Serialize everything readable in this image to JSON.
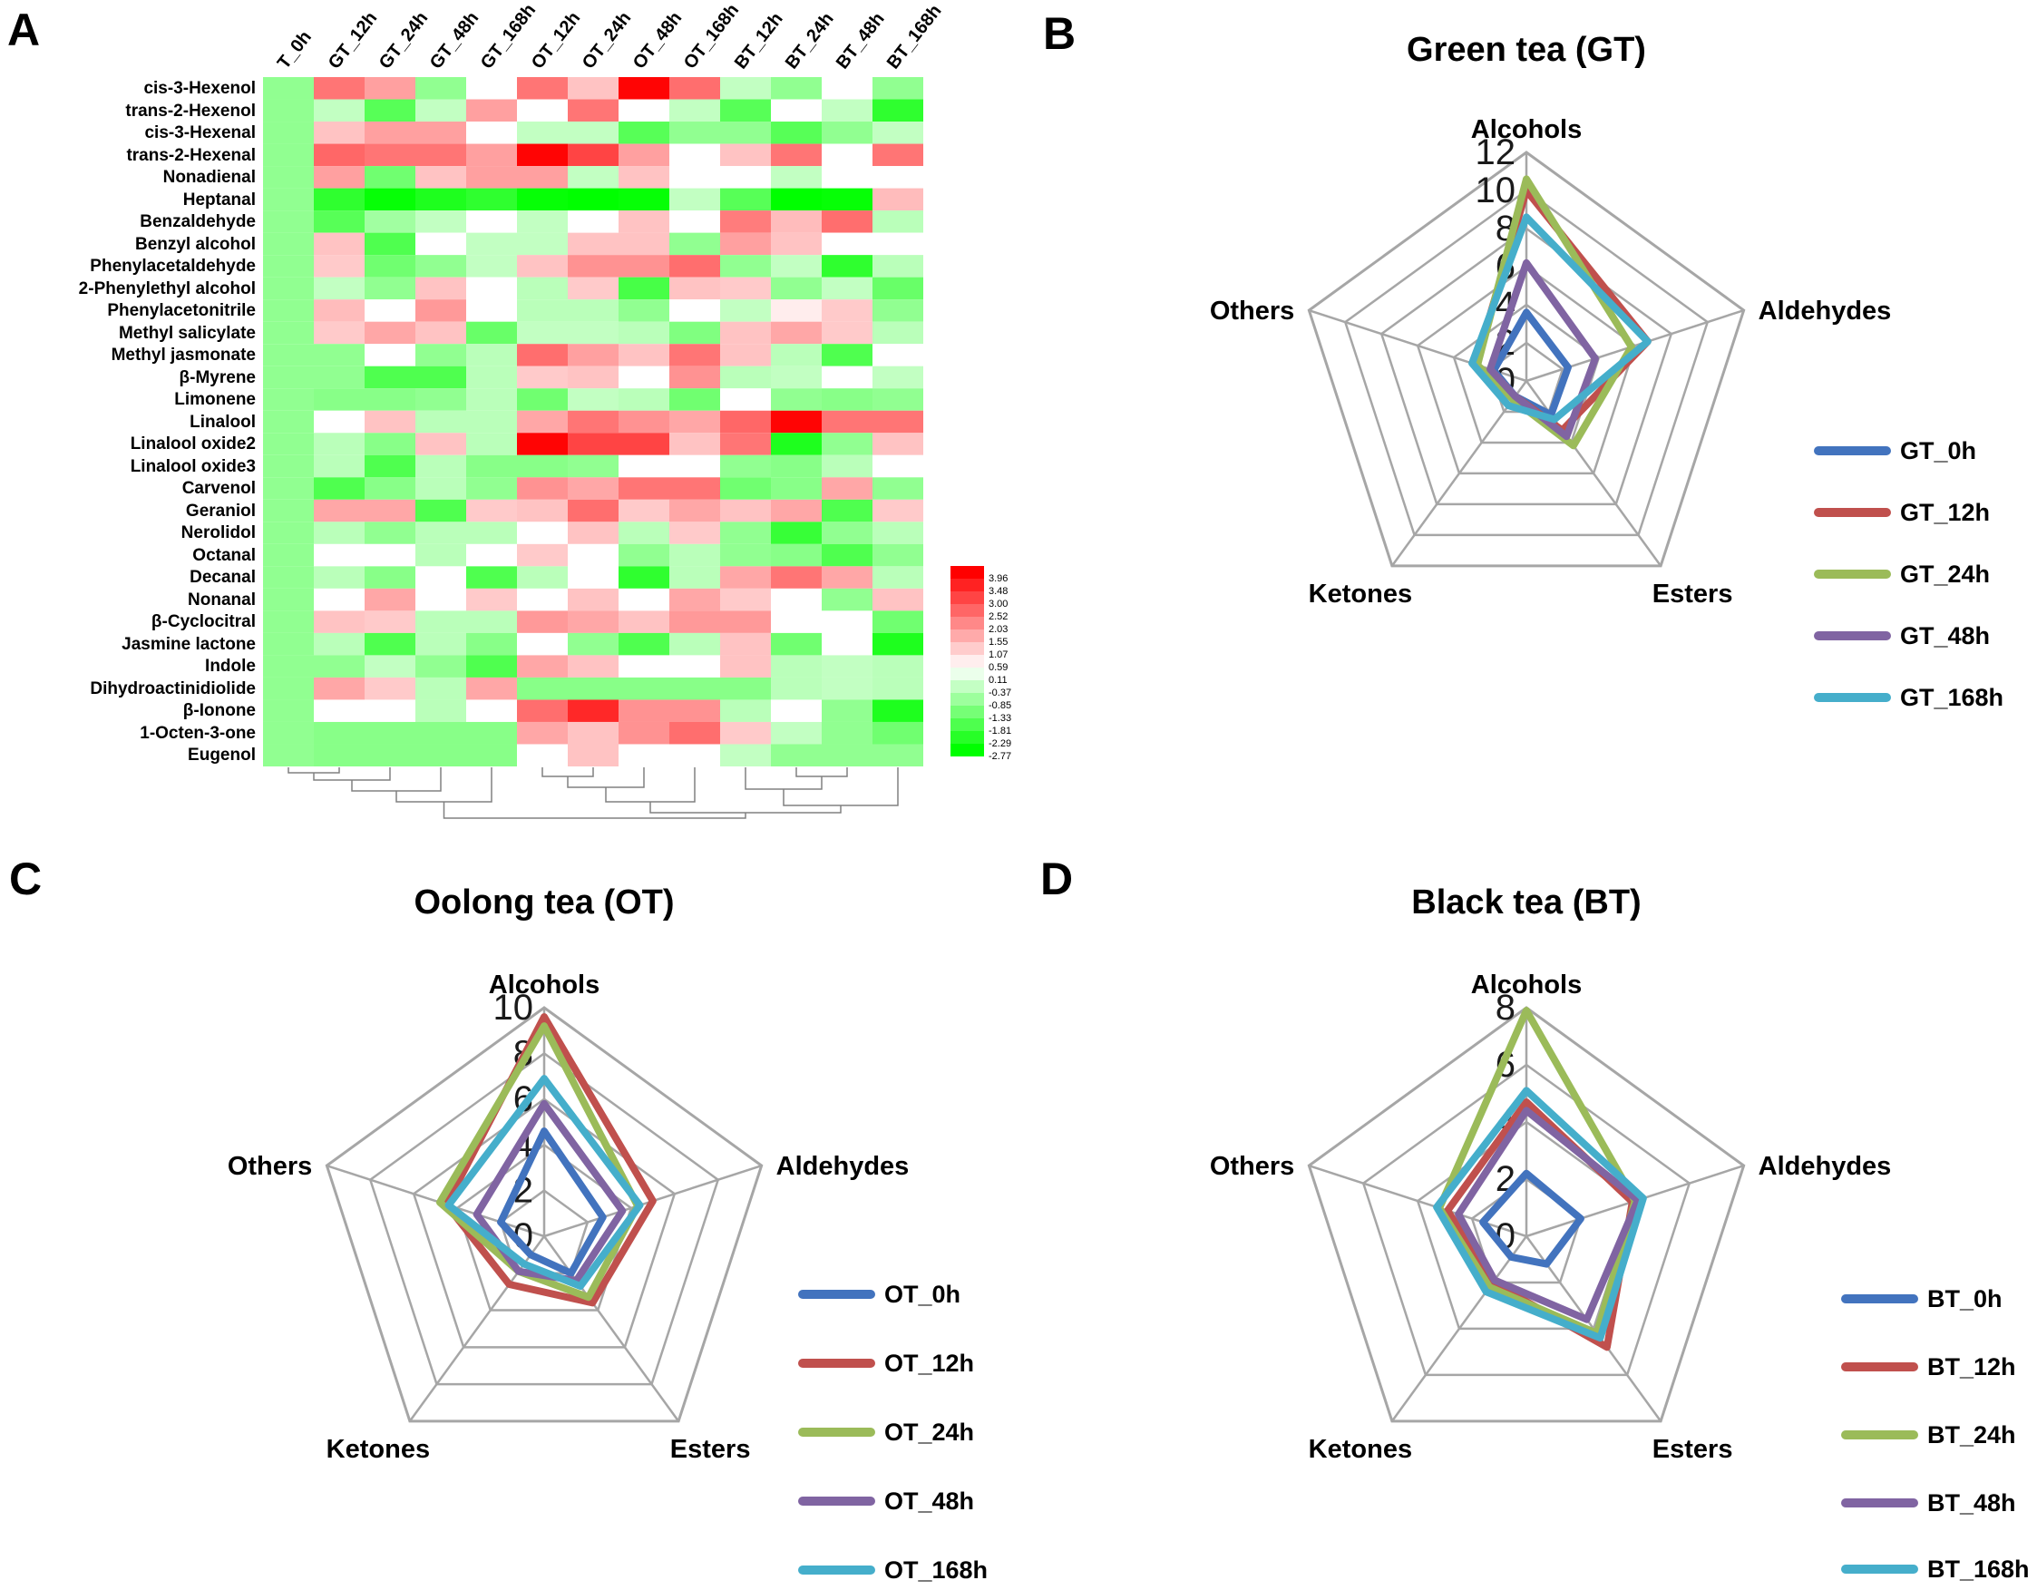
{
  "chart_data": [
    {
      "id": "A",
      "type": "heatmap",
      "label": "A",
      "columns": [
        "T_0h",
        "GT_12h",
        "GT_24h",
        "GT_48h",
        "GT_168h",
        "OT_12h",
        "OT_24h",
        "OT_48h",
        "OT_168h",
        "BT_12h",
        "BT_24h",
        "BT_48h",
        "BT_168h"
      ],
      "rows": [
        "cis-3-Hexenol",
        "trans-2-Hexenol",
        "cis-3-Hexenal",
        "trans-2-Hexenal",
        "Nonadienal",
        "Heptanal",
        "Benzaldehyde",
        "Benzyl alcohol",
        "Phenylacetaldehyde",
        "2-Phenylethyl alcohol",
        "Phenylacetonitrile",
        "Methyl salicylate",
        "Methyl jasmonate",
        "β-Myrene",
        "Limonene",
        "Linalool",
        "Linalool oxide2",
        "Linalool oxide3",
        "Carvenol",
        "Geraniol",
        "Nerolidol",
        "Octanal",
        "Decanal",
        "Nonanal",
        "β-Cyclocitral",
        "Jasmine lactone",
        "Indole",
        "Dihydroactinidiolide",
        "β-Ionone",
        "1-Octen-3-one",
        "Eugenol"
      ],
      "values": [
        [
          -1.0,
          2.3,
          1.7,
          -1.0,
          0.35,
          2.3,
          1.2,
          3.9,
          2.4,
          -0.4,
          -1.0,
          0.35,
          -1.0
        ],
        [
          -1.0,
          -0.4,
          -1.7,
          -0.4,
          1.7,
          0.35,
          2.3,
          0.35,
          -0.4,
          -1.7,
          0.35,
          -0.4,
          -2.2
        ],
        [
          -1.0,
          1.2,
          1.7,
          1.7,
          0.35,
          -0.4,
          -0.4,
          -1.7,
          -1.0,
          -1.0,
          -1.7,
          -1.0,
          -0.4
        ],
        [
          -1.0,
          2.5,
          2.3,
          2.3,
          1.7,
          3.9,
          3.0,
          1.7,
          0.35,
          1.2,
          2.3,
          0.35,
          2.3
        ],
        [
          -1.0,
          1.7,
          -1.4,
          1.2,
          1.7,
          1.7,
          -0.4,
          1.2,
          0.35,
          0.35,
          -0.4,
          0.35,
          0.35
        ],
        [
          -1.0,
          -2.2,
          -2.7,
          -2.4,
          -2.2,
          -2.7,
          -2.8,
          -2.7,
          -0.4,
          -1.7,
          -2.8,
          -2.7,
          1.3
        ],
        [
          -1.0,
          -1.7,
          -0.8,
          -0.4,
          0.35,
          -0.4,
          0.35,
          1.2,
          0.35,
          2.2,
          1.3,
          2.4,
          -0.5
        ],
        [
          -1.0,
          1.2,
          -1.8,
          0.35,
          -0.4,
          -0.4,
          1.2,
          1.2,
          -1.0,
          1.7,
          1.2,
          0.35,
          0.35
        ],
        [
          -1.0,
          1.1,
          -1.4,
          -1.0,
          -0.4,
          1.2,
          1.9,
          1.9,
          2.4,
          -1.0,
          -0.4,
          -2.2,
          -0.5
        ],
        [
          -1.0,
          -0.4,
          -1.0,
          1.2,
          0.35,
          -0.5,
          1.1,
          -1.9,
          1.2,
          1.1,
          -1.0,
          -0.4,
          -1.5
        ],
        [
          -1.0,
          1.3,
          0.35,
          1.8,
          0.35,
          -0.5,
          -0.5,
          -1.0,
          0.35,
          -0.4,
          0.6,
          1.1,
          -1.0
        ],
        [
          -1.0,
          1.1,
          1.6,
          1.2,
          -1.5,
          -0.4,
          -0.4,
          -0.5,
          -1.2,
          1.2,
          1.6,
          1.1,
          -0.5
        ],
        [
          -1.0,
          -1.0,
          0.35,
          -1.0,
          -0.5,
          2.4,
          1.7,
          1.2,
          2.3,
          1.2,
          -0.5,
          -1.8,
          0.35
        ],
        [
          -1.0,
          -1.0,
          -1.8,
          -1.8,
          -0.5,
          1.1,
          1.2,
          0.35,
          1.9,
          -0.5,
          -0.4,
          0.35,
          -0.4
        ],
        [
          -1.0,
          -1.1,
          -1.1,
          -1.0,
          -0.5,
          -1.4,
          -0.4,
          -0.5,
          -1.4,
          0.35,
          -1.0,
          -1.1,
          -1.0
        ],
        [
          -1.0,
          0.35,
          1.2,
          -0.5,
          -0.5,
          1.6,
          2.3,
          1.9,
          1.6,
          2.5,
          3.9,
          2.3,
          2.3
        ],
        [
          -1.0,
          -0.5,
          -1.1,
          1.2,
          -0.5,
          3.9,
          3.0,
          3.0,
          1.2,
          2.3,
          -2.4,
          -1.0,
          1.2
        ],
        [
          -1.0,
          -0.5,
          -1.8,
          -0.5,
          -1.1,
          -1.1,
          -1.0,
          0.35,
          0.35,
          -1.0,
          -1.1,
          -0.5,
          0.35
        ],
        [
          -1.0,
          -1.8,
          -1.1,
          -0.5,
          -1.0,
          1.9,
          1.6,
          2.3,
          2.3,
          -1.4,
          -1.1,
          1.6,
          -1.0
        ],
        [
          -1.0,
          1.6,
          1.6,
          -1.8,
          1.1,
          1.2,
          2.4,
          1.1,
          1.6,
          1.2,
          1.6,
          -1.8,
          1.1
        ],
        [
          -1.0,
          -0.5,
          -1.0,
          -0.5,
          -0.5,
          0.35,
          1.2,
          -0.5,
          1.1,
          -1.0,
          -2.1,
          -1.0,
          -0.5
        ],
        [
          -1.0,
          0.35,
          0.35,
          -0.5,
          0.35,
          1.1,
          0.35,
          -1.0,
          -0.5,
          -1.0,
          -1.1,
          -1.8,
          -1.0
        ],
        [
          -1.0,
          -0.5,
          -1.1,
          0.35,
          -1.8,
          -0.5,
          0.35,
          -2.2,
          -0.5,
          1.6,
          2.3,
          1.6,
          -0.5
        ],
        [
          -1.0,
          0.35,
          1.6,
          0.35,
          1.1,
          0.35,
          1.2,
          0.35,
          1.6,
          1.1,
          0.35,
          -1.0,
          1.2
        ],
        [
          -1.0,
          1.2,
          1.1,
          -0.5,
          -0.5,
          1.8,
          1.6,
          1.2,
          1.8,
          1.8,
          0.35,
          0.35,
          -1.4
        ],
        [
          -1.0,
          -0.5,
          -1.8,
          -0.5,
          -1.1,
          0.35,
          -1.0,
          -1.8,
          -0.5,
          1.2,
          -1.4,
          0.35,
          -2.4
        ],
        [
          -1.0,
          -1.0,
          -0.4,
          -1.0,
          -1.8,
          1.6,
          1.2,
          0.35,
          0.35,
          1.2,
          -0.5,
          -0.4,
          -0.5
        ],
        [
          -1.0,
          1.6,
          1.1,
          -0.5,
          1.6,
          -1.1,
          -1.1,
          -1.1,
          -1.1,
          -1.1,
          -0.5,
          -0.4,
          -0.5
        ],
        [
          -1.0,
          0.35,
          0.35,
          -0.5,
          0.35,
          2.4,
          3.4,
          1.9,
          1.9,
          -0.5,
          0.35,
          -1.0,
          -2.4
        ],
        [
          -1.0,
          -1.1,
          -1.1,
          -1.1,
          -1.1,
          1.6,
          1.2,
          1.9,
          2.4,
          1.1,
          -0.4,
          -1.0,
          -1.4
        ],
        [
          -1.0,
          -1.1,
          -1.1,
          -1.1,
          -1.1,
          0.35,
          1.2,
          0.35,
          0.35,
          -0.4,
          -1.0,
          -1.0,
          -1.0
        ]
      ],
      "colorbar": {
        "ticks": [
          "3.96",
          "3.48",
          "3.00",
          "2.52",
          "2.03",
          "1.55",
          "1.07",
          "0.59",
          "0.11",
          "-0.37",
          "-0.85",
          "-1.33",
          "-1.81",
          "-2.29",
          "-2.77"
        ],
        "max_color": "#FF0000",
        "mid_color": "#FFFFFF",
        "min_color": "#00FF00"
      },
      "value_domain": {
        "min": -2.77,
        "max": 3.96,
        "white_point": 0.35
      },
      "dendrogram": {
        "merges": [
          [
            "L0",
            "L1",
            6
          ],
          [
            "M0",
            "L2",
            14
          ],
          [
            "M1",
            "L3",
            26
          ],
          [
            "M2",
            "L4",
            38
          ],
          [
            "L5",
            "L6",
            10
          ],
          [
            "M4",
            "L7",
            22
          ],
          [
            "M5",
            "L8",
            38
          ],
          [
            "L10",
            "L11",
            10
          ],
          [
            "L9",
            "M7",
            24
          ],
          [
            "M8",
            "L12",
            42
          ],
          [
            "M6",
            "M9",
            50
          ],
          [
            "M3",
            "M10",
            56
          ]
        ]
      }
    },
    {
      "id": "B",
      "type": "radar",
      "label": "B",
      "title": "Green tea (GT)",
      "axes": [
        "Alcohols",
        "Aldehydes",
        "Esters",
        "Ketones",
        "Others"
      ],
      "max": 12,
      "ticks": [
        12,
        10,
        8,
        6,
        4,
        2,
        0
      ],
      "grid_color": "#A6A6A6",
      "legend_position": "right",
      "series": [
        {
          "name": "GT_0h",
          "color": "#4273BE",
          "values": [
            3.6,
            2.3,
            2.2,
            1.0,
            1.8
          ]
        },
        {
          "name": "GT_12h",
          "color": "#C0504D",
          "values": [
            10.0,
            6.7,
            3.2,
            1.0,
            2.8
          ]
        },
        {
          "name": "GT_24h",
          "color": "#9BBB59",
          "values": [
            10.6,
            5.8,
            4.2,
            1.2,
            2.7
          ]
        },
        {
          "name": "GT_48h",
          "color": "#8064A2",
          "values": [
            6.2,
            3.8,
            3.6,
            1.0,
            2.0
          ]
        },
        {
          "name": "GT_168h",
          "color": "#45AECB",
          "values": [
            8.6,
            6.7,
            2.5,
            1.6,
            3.0
          ]
        }
      ]
    },
    {
      "id": "C",
      "type": "radar",
      "label": "C",
      "title": "Oolong tea (OT)",
      "axes": [
        "Alcohols",
        "Aldehydes",
        "Esters",
        "Ketones",
        "Others"
      ],
      "max": 10,
      "ticks": [
        10,
        8,
        6,
        4,
        2,
        0
      ],
      "grid_color": "#A6A6A6",
      "legend_position": "right",
      "series": [
        {
          "name": "OT_0h",
          "color": "#4273BE",
          "values": [
            4.6,
            2.7,
            2.0,
            1.0,
            2.0
          ]
        },
        {
          "name": "OT_12h",
          "color": "#C0504D",
          "values": [
            9.6,
            5.0,
            3.6,
            2.6,
            4.5
          ]
        },
        {
          "name": "OT_24h",
          "color": "#9BBB59",
          "values": [
            9.2,
            4.3,
            3.3,
            1.9,
            4.8
          ]
        },
        {
          "name": "OT_48h",
          "color": "#8064A2",
          "values": [
            5.8,
            3.6,
            2.4,
            1.9,
            3.1
          ]
        },
        {
          "name": "OT_168h",
          "color": "#45AECB",
          "values": [
            6.9,
            4.4,
            2.7,
            1.5,
            4.4
          ]
        }
      ]
    },
    {
      "id": "D",
      "type": "radar",
      "label": "D",
      "title": "Black tea (BT)",
      "axes": [
        "Alcohols",
        "Aldehydes",
        "Esters",
        "Ketones",
        "Others"
      ],
      "max": 8,
      "ticks": [
        8,
        6,
        4,
        2,
        0
      ],
      "grid_color": "#A6A6A6",
      "legend_position": "right",
      "series": [
        {
          "name": "BT_0h",
          "color": "#4273BE",
          "values": [
            2.2,
            2.0,
            1.2,
            0.9,
            1.6
          ]
        },
        {
          "name": "BT_12h",
          "color": "#C0504D",
          "values": [
            4.7,
            3.9,
            4.8,
            2.0,
            2.9
          ]
        },
        {
          "name": "BT_24h",
          "color": "#9BBB59",
          "values": [
            7.9,
            4.0,
            4.2,
            2.2,
            3.2
          ]
        },
        {
          "name": "BT_48h",
          "color": "#8064A2",
          "values": [
            4.4,
            4.1,
            3.6,
            1.9,
            2.5
          ]
        },
        {
          "name": "BT_168h",
          "color": "#45AECB",
          "values": [
            5.1,
            4.3,
            4.4,
            2.4,
            3.3
          ]
        }
      ]
    }
  ]
}
